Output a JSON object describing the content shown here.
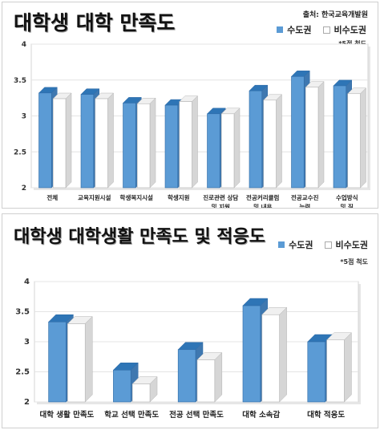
{
  "chart_data": [
    {
      "type": "bar",
      "title": "대학생 대학 만족도",
      "source": "출처: 한국교육개발원",
      "note": "*5점 척도",
      "categories": [
        "전체",
        "교육지원시설",
        "학생복지시설",
        "학생지원",
        "진로관련 상담 및 지원",
        "전공커리큘럼 및 내용",
        "전공교수진 능력",
        "수업방식 및 질"
      ],
      "series": [
        {
          "name": "수도권",
          "values": [
            3.32,
            3.3,
            3.18,
            3.15,
            3.03,
            3.35,
            3.55,
            3.42
          ]
        },
        {
          "name": "비수도권",
          "values": [
            3.24,
            3.24,
            3.17,
            3.2,
            3.03,
            3.22,
            3.4,
            3.31
          ]
        }
      ],
      "ylim": [
        2,
        4
      ],
      "yticks": [
        "2",
        "2.5",
        "3",
        "3.5",
        "4"
      ],
      "legend": "top-right",
      "colors": {
        "수도권": "#5b9bd5",
        "비수도권": "#ffffff"
      }
    },
    {
      "type": "bar",
      "title": "대학생 대학생활 만족도 및 적응도",
      "note": "*5점 척도",
      "categories": [
        "대학 생활 만족도",
        "학교 선택 만족도",
        "전공 선택 만족도",
        "대학 소속감",
        "대학 적응도"
      ],
      "series": [
        {
          "name": "수도권",
          "values": [
            3.33,
            2.53,
            2.87,
            3.6,
            3.0
          ]
        },
        {
          "name": "비수도권",
          "values": [
            3.3,
            2.3,
            2.7,
            3.45,
            3.03
          ]
        }
      ],
      "ylim": [
        2,
        4
      ],
      "yticks": [
        "2",
        "2.5",
        "3",
        "3.5",
        "4"
      ],
      "legend": "top-right",
      "colors": {
        "수도권": "#5b9bd5",
        "비수도권": "#ffffff"
      }
    }
  ]
}
